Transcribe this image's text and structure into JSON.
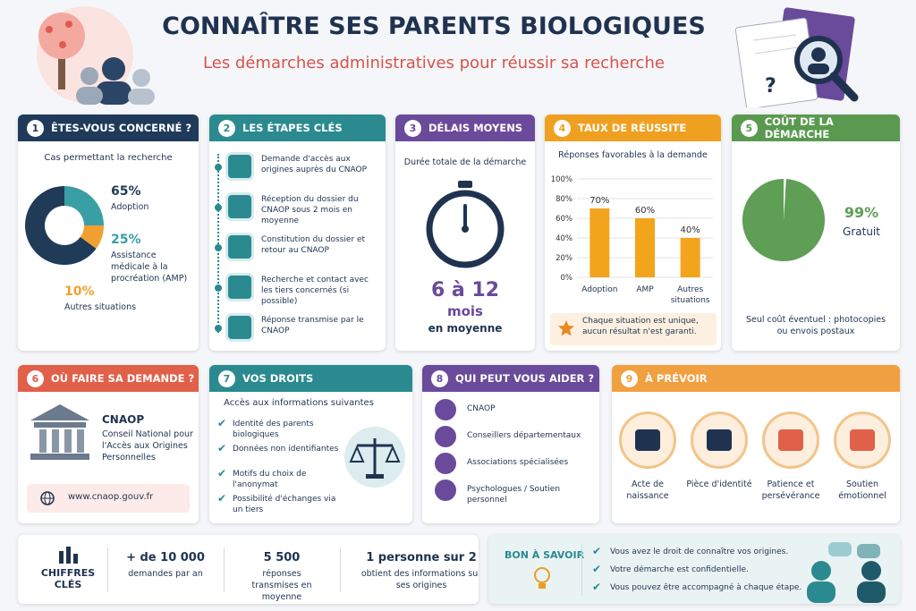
{
  "header": {
    "title": "CONNAÎTRE SES PARENTS BIOLOGIQUES",
    "subtitle": "Les démarches administratives pour réussir sa recherche"
  },
  "concerne": {
    "number": 1,
    "title": "ÊTES-VOUS CONCERNÉ ?",
    "intro": "Cas permettant la recherche",
    "chart": {
      "type": "donut",
      "values": [
        65,
        25,
        10
      ],
      "value_labels": [
        "65%",
        "25%",
        "10%"
      ],
      "labels": [
        "Adoption",
        "Assistance médicale à la procréation (AMP)",
        "Autres situations"
      ],
      "colors": [
        "#1f3b57",
        "#3a9fa5",
        "#f0a030"
      ]
    }
  },
  "etapes": {
    "number": 2,
    "title": "LES ÉTAPES CLÉS",
    "steps": [
      "Demande d'accès aux origines auprès du CNAOP",
      "Réception du dossier du CNAOP sous 2 mois en moyenne",
      "Constitution du dossier et retour au CNAOP",
      "Recherche et contact avec les tiers concernés (si possible)",
      "Réponse transmise par le CNAOP"
    ]
  },
  "delais": {
    "number": 3,
    "title": "DÉLAIS MOYENS",
    "intro": "Durée totale de la démarche",
    "value": "6 à 12",
    "unit": "mois",
    "note": "en moyenne"
  },
  "reussite": {
    "number": 4,
    "title": "TAUX DE RÉUSSITE",
    "chart": {
      "type": "bar",
      "title": "Réponses favorables à la demande",
      "categories": [
        "Adoption",
        "AMP",
        "Autres situations"
      ],
      "values": [
        70,
        60,
        40
      ],
      "value_labels": [
        "70%",
        "60%",
        "40%"
      ],
      "color": "#f2a51c",
      "ylim": [
        0,
        100
      ],
      "yticks": [
        {
          "value": 0,
          "label": "0%"
        },
        {
          "value": 20,
          "label": "20%"
        },
        {
          "value": 40,
          "label": "40%"
        },
        {
          "value": 60,
          "label": "60%"
        },
        {
          "value": 80,
          "label": "80%"
        },
        {
          "value": 100,
          "label": "100%"
        }
      ],
      "grid": true
    },
    "note": "Chaque situation est unique, aucun résultat n'est garanti."
  },
  "cout": {
    "number": 5,
    "title": "COÛT DE LA DÉMARCHE",
    "chart": {
      "type": "pie",
      "values": [
        99
      ],
      "value_labels": [
        "99%"
      ],
      "labels": [
        "Gratuit"
      ],
      "color": "#5e9e55"
    },
    "note": "Seul coût éventuel : photocopies ou envois postaux"
  },
  "ou": {
    "number": 6,
    "title": "OÙ FAIRE SA DEMANDE ?",
    "org": "CNAOP",
    "org_full": "Conseil National pour l'Accès aux Origines Personnelles",
    "website": "www.cnaop.gouv.fr"
  },
  "droits": {
    "number": 7,
    "title": "VOS DROITS",
    "intro": "Accès aux informations suivantes",
    "items": [
      "Identité des parents biologiques",
      "Données non identifiantes",
      "Motifs du choix de l'anonymat",
      "Possibilité d'échanges via un tiers"
    ]
  },
  "aide": {
    "number": 8,
    "title": "QUI PEUT VOUS AIDER ?",
    "items": [
      "CNAOP",
      "Conseillers départementaux",
      "Associations spécialisées",
      "Psychologues / Soutien personnel"
    ]
  },
  "prevoir": {
    "number": 9,
    "title": "À PRÉVOIR",
    "items": [
      "Acte de naissance",
      "Pièce d'identité",
      "Patience et persévérance",
      "Soutien émotionnel"
    ]
  },
  "chiffres": {
    "title": "CHIFFRES CLÉS",
    "items": [
      {
        "value": "+ de 10 000",
        "label": "demandes par an"
      },
      {
        "value": "5 500",
        "label": "réponses transmises en moyenne"
      },
      {
        "value": "1 personne sur 2",
        "label": "obtient des informations sur ses origines"
      }
    ]
  },
  "savoir": {
    "title": "BON À SAVOIR",
    "items": [
      "Vous avez le droit de connaître vos origines.",
      "Votre démarche est confidentielle.",
      "Vous pouvez être accompagné à chaque étape."
    ]
  }
}
